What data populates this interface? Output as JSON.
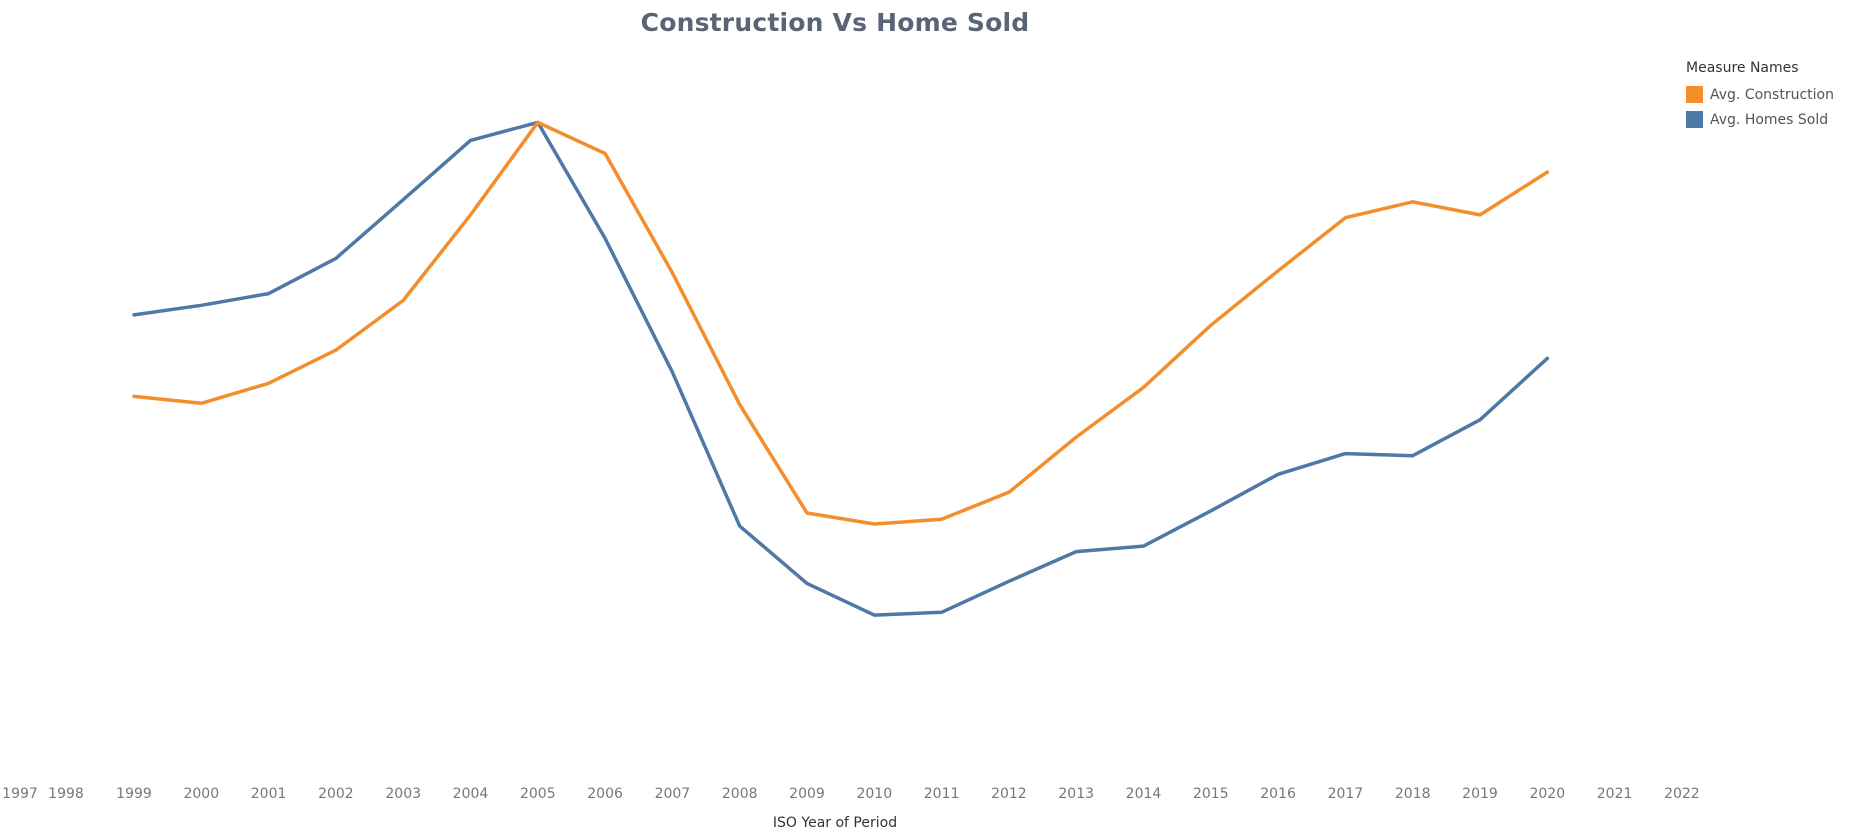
{
  "chart_data": {
    "type": "line",
    "title": "Construction Vs Home Sold",
    "xlabel": "ISO Year of Period",
    "ylabel": "",
    "x_ticks": [
      1997,
      1998,
      1999,
      2000,
      2001,
      2002,
      2003,
      2004,
      2005,
      2006,
      2007,
      2008,
      2009,
      2010,
      2011,
      2012,
      2013,
      2014,
      2015,
      2016,
      2017,
      2018,
      2019,
      2020,
      2021,
      2022
    ],
    "x": [
      1999,
      2000,
      2001,
      2002,
      2003,
      2004,
      2005,
      2006,
      2007,
      2008,
      2009,
      2010,
      2011,
      2012,
      2013,
      2014,
      2015,
      2016,
      2017,
      2018,
      2019,
      2020
    ],
    "ylim": [
      0,
      100
    ],
    "y_axis_shown": false,
    "grid": false,
    "legend": {
      "title": "Measure Names",
      "position": "top-right"
    },
    "series": [
      {
        "name": "Avg. Construction",
        "color": "#f28e2b",
        "values": [
          55.6,
          54.6,
          57.5,
          62.3,
          69.5,
          81.9,
          95.3,
          90.8,
          73.5,
          54.4,
          38.7,
          37.1,
          37.8,
          41.7,
          49.7,
          56.9,
          65.9,
          73.8,
          81.5,
          83.8,
          81.9,
          88.1
        ]
      },
      {
        "name": "Avg. Homes Sold",
        "color": "#4e79a7",
        "values": [
          67.4,
          68.8,
          70.5,
          75.6,
          84.1,
          92.7,
          95.3,
          78.5,
          59.1,
          36.8,
          28.5,
          23.9,
          24.3,
          28.8,
          33.1,
          33.9,
          39.0,
          44.3,
          47.3,
          47.0,
          52.2,
          61.1
        ]
      }
    ]
  }
}
